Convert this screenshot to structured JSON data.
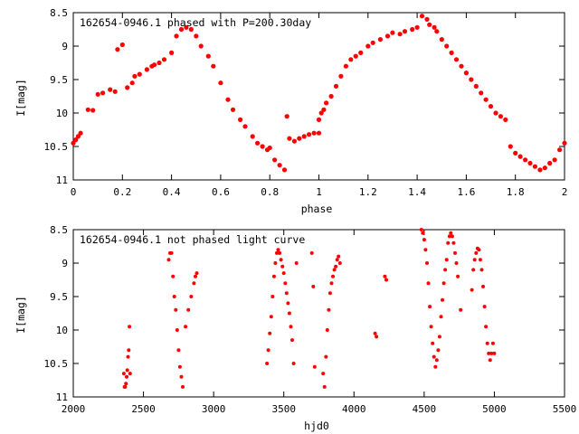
{
  "chart_data": [
    {
      "type": "scatter",
      "title": "162654-0946.1 phased with P=200.30day",
      "xlabel": "phase",
      "ylabel": "I[mag]",
      "xlim": [
        0,
        2
      ],
      "ylim": [
        8.5,
        11
      ],
      "y_inverted": true,
      "xticks": [
        0,
        0.2,
        0.4,
        0.6,
        0.8,
        1,
        1.2,
        1.4,
        1.6,
        1.8,
        2
      ],
      "xtick_labels": [
        "0",
        "0.2",
        "0.4",
        "0.6",
        "0.8",
        "1",
        "1.2",
        "1.4",
        "1.6",
        "1.8",
        "2"
      ],
      "yticks": [
        8.5,
        9,
        9.5,
        10,
        10.5,
        11
      ],
      "ytick_labels": [
        "8.5",
        "9",
        "9.5",
        "10",
        "10.5",
        "11"
      ],
      "grid": false,
      "color": "#ff0000",
      "series": [
        {
          "x": [
            0.0,
            0.01,
            0.02,
            0.03,
            0.06,
            0.08,
            0.1,
            0.12,
            0.15,
            0.17,
            0.18,
            0.2,
            0.22,
            0.24,
            0.25,
            0.27,
            0.3,
            0.32,
            0.33,
            0.35,
            0.37,
            0.4,
            0.42,
            0.44,
            0.46,
            0.48,
            0.5,
            0.52,
            0.55,
            0.57,
            0.6,
            0.63,
            0.65,
            0.68,
            0.7,
            0.73,
            0.75,
            0.77,
            0.79,
            0.8,
            0.82,
            0.84,
            0.86,
            0.87,
            0.88,
            0.9,
            0.92,
            0.94,
            0.96,
            0.98,
            1.0,
            1.0,
            1.01,
            1.02,
            1.03,
            1.05,
            1.07,
            1.09,
            1.11,
            1.13,
            1.15,
            1.17,
            1.2,
            1.22,
            1.25,
            1.28,
            1.3,
            1.33,
            1.35,
            1.38,
            1.4,
            1.42,
            1.44,
            1.45,
            1.47,
            1.48,
            1.5,
            1.52,
            1.54,
            1.56,
            1.58,
            1.6,
            1.62,
            1.64,
            1.66,
            1.68,
            1.7,
            1.72,
            1.74,
            1.76,
            1.78,
            1.8,
            1.82,
            1.84,
            1.86,
            1.88,
            1.9,
            1.92,
            1.94,
            1.96,
            1.98,
            2.0
          ],
          "y": [
            10.45,
            10.4,
            10.35,
            10.3,
            9.95,
            9.96,
            9.72,
            9.7,
            9.65,
            9.68,
            9.05,
            8.98,
            9.62,
            9.55,
            9.45,
            9.42,
            9.35,
            9.3,
            9.28,
            9.25,
            9.2,
            9.1,
            8.85,
            8.75,
            8.72,
            8.75,
            8.85,
            9.0,
            9.15,
            9.3,
            9.55,
            9.8,
            9.95,
            10.1,
            10.2,
            10.35,
            10.45,
            10.5,
            10.55,
            10.52,
            10.7,
            10.78,
            10.85,
            10.05,
            10.38,
            10.42,
            10.38,
            10.35,
            10.32,
            10.3,
            10.3,
            10.1,
            10.0,
            9.95,
            9.85,
            9.75,
            9.6,
            9.45,
            9.3,
            9.2,
            9.15,
            9.1,
            9.0,
            8.95,
            8.9,
            8.85,
            8.8,
            8.82,
            8.78,
            8.75,
            8.72,
            8.55,
            8.6,
            8.68,
            8.72,
            8.78,
            8.9,
            9.0,
            9.1,
            9.2,
            9.3,
            9.4,
            9.5,
            9.6,
            9.7,
            9.8,
            9.9,
            10.0,
            10.05,
            10.1,
            10.5,
            10.6,
            10.65,
            10.7,
            10.75,
            10.8,
            10.85,
            10.82,
            10.75,
            10.7,
            10.55,
            10.45
          ]
        }
      ]
    },
    {
      "type": "scatter",
      "title": "162654-0946.1 not phased light curve",
      "xlabel": "hjd0",
      "ylabel": "I[mag]",
      "xlim": [
        2000,
        5500
      ],
      "ylim": [
        8.5,
        11
      ],
      "y_inverted": true,
      "xticks": [
        2000,
        2500,
        3000,
        3500,
        4000,
        4500,
        5000,
        5500
      ],
      "xtick_labels": [
        "2000",
        "2500",
        "3000",
        "3500",
        "4000",
        "4500",
        "5000",
        "5500"
      ],
      "yticks": [
        8.5,
        9,
        9.5,
        10,
        10.5,
        11
      ],
      "ytick_labels": [
        "8.5",
        "9",
        "9.5",
        "10",
        "10.5",
        "11"
      ],
      "grid": false,
      "color": "#ff0000",
      "series": [
        {
          "x": [
            2360,
            2365,
            2370,
            2375,
            2380,
            2385,
            2390,
            2395,
            2400,
            2405,
            2680,
            2690,
            2700,
            2710,
            2720,
            2730,
            2740,
            2750,
            2760,
            2770,
            2780,
            2800,
            2820,
            2840,
            2860,
            2870,
            2880,
            3380,
            3390,
            3400,
            3410,
            3420,
            3430,
            3440,
            3450,
            3460,
            3470,
            3480,
            3490,
            3500,
            3510,
            3520,
            3530,
            3540,
            3550,
            3560,
            3570,
            3590,
            3700,
            3710,
            3720,
            3780,
            3790,
            3800,
            3810,
            3820,
            3830,
            3840,
            3850,
            3860,
            3870,
            3880,
            3890,
            3900,
            4150,
            4160,
            4220,
            4230,
            4480,
            4490,
            4500,
            4510,
            4520,
            4530,
            4540,
            4550,
            4560,
            4570,
            4580,
            4590,
            4600,
            4610,
            4620,
            4630,
            4640,
            4650,
            4660,
            4670,
            4680,
            4690,
            4700,
            4710,
            4720,
            4730,
            4740,
            4760,
            4840,
            4850,
            4860,
            4870,
            4880,
            4890,
            4900,
            4910,
            4920,
            4930,
            4940,
            4950,
            4960,
            4970,
            4980,
            4990,
            5000
          ],
          "y": [
            10.65,
            10.85,
            10.85,
            10.8,
            10.7,
            10.6,
            10.4,
            10.3,
            9.95,
            10.65,
            8.95,
            8.85,
            8.85,
            9.2,
            9.5,
            9.7,
            10.0,
            10.3,
            10.55,
            10.7,
            10.85,
            9.95,
            9.7,
            9.5,
            9.3,
            9.2,
            9.15,
            10.5,
            10.3,
            10.05,
            9.8,
            9.5,
            9.2,
            9.0,
            8.85,
            8.8,
            8.85,
            8.95,
            9.05,
            9.15,
            9.3,
            9.45,
            9.6,
            9.75,
            9.95,
            10.15,
            10.5,
            9.0,
            8.85,
            9.35,
            10.55,
            10.65,
            10.85,
            10.4,
            10.0,
            9.7,
            9.45,
            9.3,
            9.2,
            9.1,
            9.05,
            8.95,
            8.9,
            9.0,
            10.05,
            10.1,
            9.2,
            9.25,
            8.5,
            8.55,
            8.65,
            8.8,
            9.0,
            9.3,
            9.65,
            9.95,
            10.2,
            10.4,
            10.55,
            10.45,
            10.3,
            10.1,
            9.8,
            9.55,
            9.3,
            9.1,
            8.95,
            8.7,
            8.6,
            8.55,
            8.6,
            8.7,
            8.85,
            9.0,
            9.2,
            9.7,
            9.4,
            9.1,
            8.95,
            8.85,
            8.78,
            8.8,
            8.95,
            9.1,
            9.35,
            9.65,
            9.95,
            10.2,
            10.35,
            10.45,
            10.35,
            10.2,
            10.35
          ]
        }
      ]
    }
  ]
}
